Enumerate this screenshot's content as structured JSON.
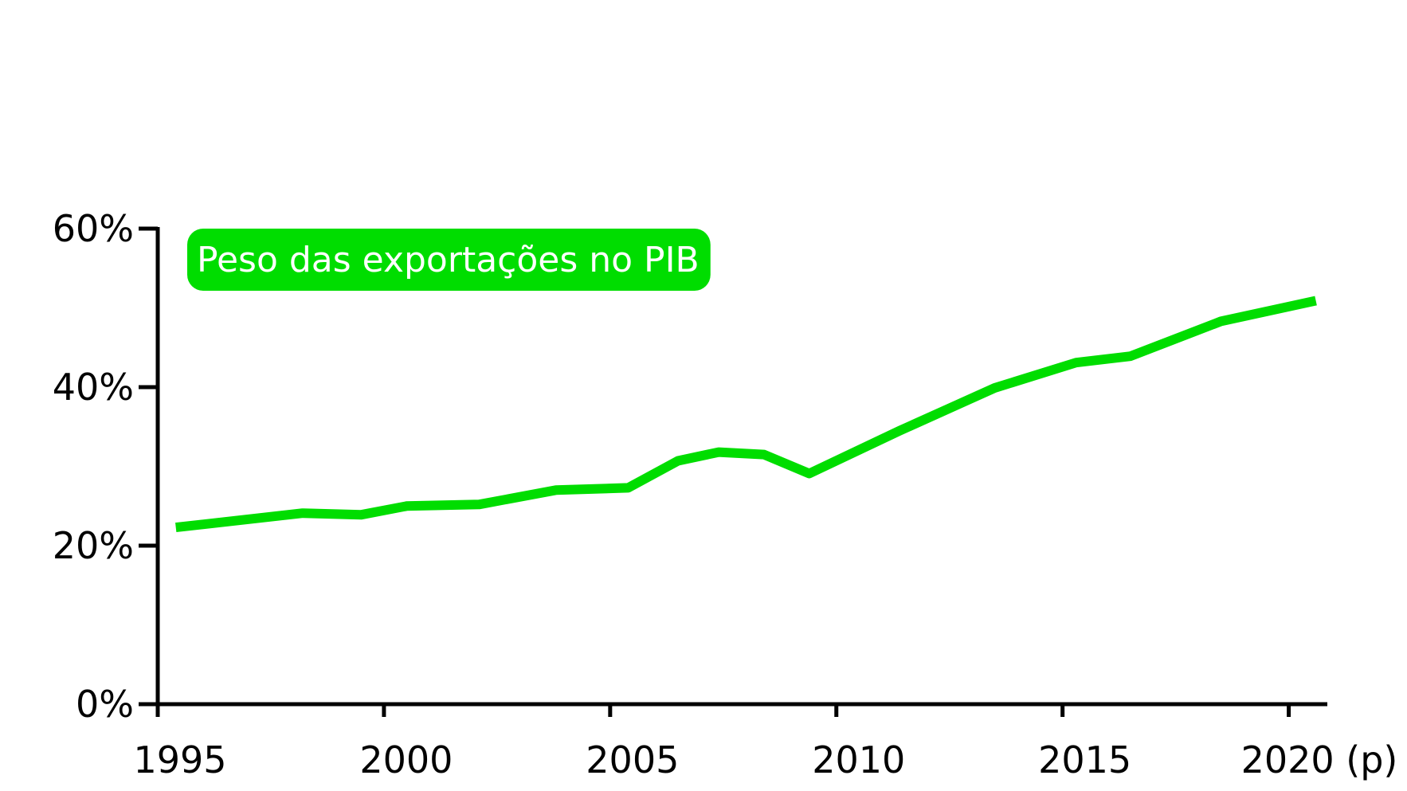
{
  "chart_data": {
    "type": "line",
    "title": "",
    "xlabel": "",
    "ylabel": "",
    "xlim": [
      1995,
      2020.8
    ],
    "ylim": [
      0,
      60
    ],
    "x_ticks": [
      1995,
      2000,
      2005,
      2010,
      2015,
      2020
    ],
    "x_tick_labels": [
      "1995",
      "2000",
      "2005",
      "2010",
      "2015",
      "2020 (p)"
    ],
    "y_ticks": [
      0,
      20,
      40,
      60
    ],
    "y_tick_labels": [
      "0%",
      "20%",
      "40%",
      "60%"
    ],
    "grid": false,
    "legend_position": "top-left",
    "series": [
      {
        "name": "Peso das exportações no PIB",
        "color": "#00dd00",
        "x": [
          1995.4,
          1998.2,
          1999.5,
          2000.5,
          2002.1,
          2003.8,
          2005.4,
          2006.5,
          2007.4,
          2008.4,
          2009.4,
          2011.4,
          2013.5,
          2015.3,
          2016.5,
          2018.5,
          2020.6
        ],
        "values": [
          22.3,
          24.1,
          23.9,
          25.0,
          25.2,
          27.0,
          27.3,
          30.7,
          31.8,
          31.5,
          29.1,
          34.5,
          39.9,
          43.1,
          43.9,
          48.3,
          50.9
        ]
      }
    ]
  }
}
